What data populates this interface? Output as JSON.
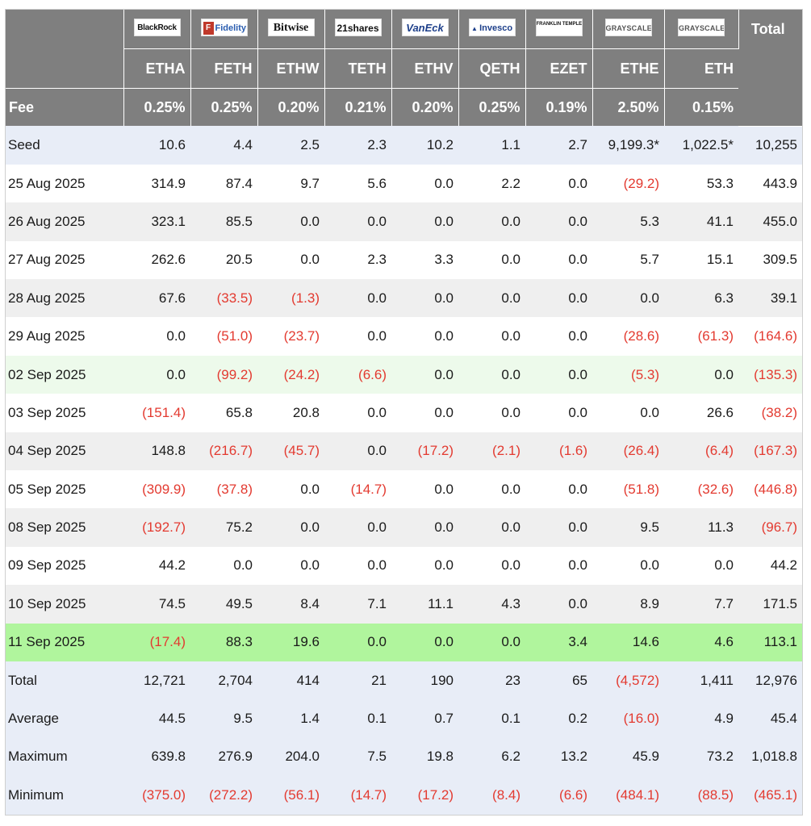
{
  "columns": [
    {
      "issuer": "BlackRock",
      "ticker": "ETHA",
      "fee": "0.25%",
      "logo_style": "blackrock"
    },
    {
      "issuer": "Fidelity",
      "ticker": "FETH",
      "fee": "0.25%",
      "logo_style": "fidelity"
    },
    {
      "issuer": "Bitwise",
      "ticker": "ETHW",
      "fee": "0.20%",
      "logo_style": "bitwise"
    },
    {
      "issuer": "21shares",
      "ticker": "TETH",
      "fee": "0.21%",
      "logo_style": "shares"
    },
    {
      "issuer": "VanEck",
      "ticker": "ETHV",
      "fee": "0.20%",
      "logo_style": "vaneck"
    },
    {
      "issuer": "Invesco",
      "ticker": "QETH",
      "fee": "0.25%",
      "logo_style": "invesco"
    },
    {
      "issuer": "FRANKLIN TEMPLETON",
      "ticker": "EZET",
      "fee": "0.19%",
      "logo_style": "franklin"
    },
    {
      "issuer": "GRAYSCALE",
      "ticker": "ETHE",
      "fee": "2.50%",
      "logo_style": "grayscale"
    },
    {
      "issuer": "GRAYSCALE",
      "ticker": "ETH",
      "fee": "0.15%",
      "logo_style": "grayscale"
    }
  ],
  "header": {
    "total_label": "Total",
    "fee_label": "Fee"
  },
  "colors": {
    "header_bg": "#7f7f7f",
    "negative": "#e33a30",
    "highlight_green": "#b0f59d",
    "mint": "#edfaeb",
    "summary_blue": "#e8edf7"
  },
  "rows": [
    {
      "label": "Seed",
      "style": "blue",
      "values": [
        "10.6",
        "4.4",
        "2.5",
        "2.3",
        "10.2",
        "1.1",
        "2.7",
        "9,199.3*",
        "1,022.5*"
      ],
      "total": "10,255"
    },
    {
      "label": "25 Aug 2025",
      "style": "white",
      "values": [
        "314.9",
        "87.4",
        "9.7",
        "5.6",
        "0.0",
        "2.2",
        "0.0",
        "(29.2)",
        "53.3"
      ],
      "total": "443.9"
    },
    {
      "label": "26 Aug 2025",
      "style": "gray",
      "values": [
        "323.1",
        "85.5",
        "0.0",
        "0.0",
        "0.0",
        "0.0",
        "0.0",
        "5.3",
        "41.1"
      ],
      "total": "455.0"
    },
    {
      "label": "27 Aug 2025",
      "style": "white",
      "values": [
        "262.6",
        "20.5",
        "0.0",
        "2.3",
        "3.3",
        "0.0",
        "0.0",
        "5.7",
        "15.1"
      ],
      "total": "309.5"
    },
    {
      "label": "28 Aug 2025",
      "style": "gray",
      "values": [
        "67.6",
        "(33.5)",
        "(1.3)",
        "0.0",
        "0.0",
        "0.0",
        "0.0",
        "0.0",
        "6.3"
      ],
      "total": "39.1"
    },
    {
      "label": "29 Aug 2025",
      "style": "white",
      "values": [
        "0.0",
        "(51.0)",
        "(23.7)",
        "0.0",
        "0.0",
        "0.0",
        "0.0",
        "(28.6)",
        "(61.3)"
      ],
      "total": "(164.6)"
    },
    {
      "label": "02 Sep 2025",
      "style": "mint",
      "values": [
        "0.0",
        "(99.2)",
        "(24.2)",
        "(6.6)",
        "0.0",
        "0.0",
        "0.0",
        "(5.3)",
        "0.0"
      ],
      "total": "(135.3)"
    },
    {
      "label": "03 Sep 2025",
      "style": "white",
      "values": [
        "(151.4)",
        "65.8",
        "20.8",
        "0.0",
        "0.0",
        "0.0",
        "0.0",
        "0.0",
        "26.6"
      ],
      "total": "(38.2)"
    },
    {
      "label": "04 Sep 2025",
      "style": "gray",
      "values": [
        "148.8",
        "(216.7)",
        "(45.7)",
        "0.0",
        "(17.2)",
        "(2.1)",
        "(1.6)",
        "(26.4)",
        "(6.4)"
      ],
      "total": "(167.3)"
    },
    {
      "label": "05 Sep 2025",
      "style": "white",
      "values": [
        "(309.9)",
        "(37.8)",
        "0.0",
        "(14.7)",
        "0.0",
        "0.0",
        "0.0",
        "(51.8)",
        "(32.6)"
      ],
      "total": "(446.8)"
    },
    {
      "label": "08 Sep 2025",
      "style": "gray",
      "values": [
        "(192.7)",
        "75.2",
        "0.0",
        "0.0",
        "0.0",
        "0.0",
        "0.0",
        "9.5",
        "11.3"
      ],
      "total": "(96.7)"
    },
    {
      "label": "09 Sep 2025",
      "style": "white",
      "values": [
        "44.2",
        "0.0",
        "0.0",
        "0.0",
        "0.0",
        "0.0",
        "0.0",
        "0.0",
        "0.0"
      ],
      "total": "44.2"
    },
    {
      "label": "10 Sep 2025",
      "style": "gray",
      "values": [
        "74.5",
        "49.5",
        "8.4",
        "7.1",
        "11.1",
        "4.3",
        "0.0",
        "8.9",
        "7.7"
      ],
      "total": "171.5"
    },
    {
      "label": "11 Sep 2025",
      "style": "green",
      "values": [
        "(17.4)",
        "88.3",
        "19.6",
        "0.0",
        "0.0",
        "0.0",
        "3.4",
        "14.6",
        "4.6"
      ],
      "total": "113.1"
    },
    {
      "label": "Total",
      "style": "blue",
      "values": [
        "12,721",
        "2,704",
        "414",
        "21",
        "190",
        "23",
        "65",
        "(4,572)",
        "1,411"
      ],
      "total": "12,976"
    },
    {
      "label": "Average",
      "style": "blue",
      "values": [
        "44.5",
        "9.5",
        "1.4",
        "0.1",
        "0.7",
        "0.1",
        "0.2",
        "(16.0)",
        "4.9"
      ],
      "total": "45.4"
    },
    {
      "label": "Maximum",
      "style": "blue",
      "values": [
        "639.8",
        "276.9",
        "204.0",
        "7.5",
        "19.8",
        "6.2",
        "13.2",
        "45.9",
        "73.2"
      ],
      "total": "1,018.8"
    },
    {
      "label": "Minimum",
      "style": "blue",
      "values": [
        "(375.0)",
        "(272.2)",
        "(56.1)",
        "(14.7)",
        "(17.2)",
        "(8.4)",
        "(6.6)",
        "(484.1)",
        "(88.5)"
      ],
      "total": "(465.1)"
    }
  ]
}
